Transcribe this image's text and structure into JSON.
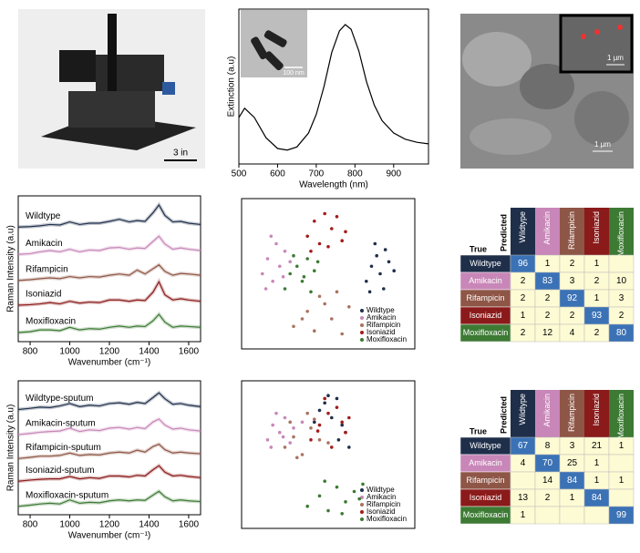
{
  "photo": {
    "scale_label": "3 in"
  },
  "tem_inset": {
    "scale_label": "100 nm"
  },
  "sem": {
    "inset_scale_label": "1 µm",
    "scale_label": "1 µm"
  },
  "chart_data": [
    {
      "type": "line",
      "x_label": "Wavelength (nm)",
      "y_label": "Extinction (a.u)",
      "x": [
        500,
        515,
        540,
        570,
        600,
        625,
        650,
        680,
        700,
        720,
        740,
        760,
        775,
        790,
        810,
        830,
        850,
        870,
        900,
        930,
        960,
        990
      ],
      "series": [
        {
          "color": "#000000",
          "values": [
            0.3,
            0.36,
            0.3,
            0.17,
            0.1,
            0.09,
            0.11,
            0.2,
            0.32,
            0.5,
            0.72,
            0.86,
            0.9,
            0.87,
            0.73,
            0.53,
            0.38,
            0.28,
            0.2,
            0.16,
            0.14,
            0.13
          ]
        }
      ],
      "xlim": [
        500,
        990
      ],
      "ylim": [
        0,
        1
      ],
      "xticks": [
        500,
        600,
        700,
        800,
        900
      ]
    },
    {
      "type": "line",
      "x_label": "Wavenumber (cm⁻¹)",
      "y_label": "Raman Intensity (a.u)",
      "x": [
        740,
        800,
        850,
        900,
        950,
        1000,
        1050,
        1100,
        1150,
        1200,
        1250,
        1300,
        1340,
        1380,
        1420,
        1450,
        1480,
        1520,
        1560,
        1600,
        1660
      ],
      "series": [
        {
          "name": "Wildtype",
          "color": "#1f2f4a",
          "values": [
            4.4,
            4.42,
            4.45,
            4.5,
            4.48,
            4.6,
            4.5,
            4.55,
            4.55,
            4.62,
            4.7,
            4.6,
            4.65,
            4.62,
            4.95,
            5.25,
            4.85,
            4.6,
            4.62,
            4.55,
            4.5
          ]
        },
        {
          "name": "Amikacin",
          "color": "#c887b8",
          "values": [
            3.35,
            3.38,
            3.45,
            3.5,
            3.45,
            3.55,
            3.45,
            3.52,
            3.5,
            3.6,
            3.62,
            3.55,
            3.6,
            3.58,
            3.85,
            4.05,
            3.75,
            3.55,
            3.6,
            3.55,
            3.5
          ]
        },
        {
          "name": "Rifampicin",
          "color": "#8e5646",
          "values": [
            2.35,
            2.38,
            2.42,
            2.45,
            2.42,
            2.5,
            2.45,
            2.5,
            2.48,
            2.55,
            2.6,
            2.55,
            2.75,
            2.6,
            2.8,
            2.95,
            2.7,
            2.55,
            2.62,
            2.6,
            2.55
          ]
        },
        {
          "name": "Isoniazid",
          "color": "#8b1a1a",
          "values": [
            1.4,
            1.42,
            1.45,
            1.5,
            1.45,
            1.55,
            1.48,
            1.52,
            1.5,
            1.6,
            1.6,
            1.55,
            1.6,
            1.58,
            1.9,
            2.3,
            1.8,
            1.6,
            1.65,
            1.6,
            1.55
          ]
        },
        {
          "name": "Moxifloxacin",
          "color": "#3d7a34",
          "values": [
            0.35,
            0.38,
            0.45,
            0.45,
            0.42,
            0.55,
            0.45,
            0.5,
            0.48,
            0.55,
            0.6,
            0.55,
            0.6,
            0.58,
            0.8,
            1.05,
            0.75,
            0.55,
            0.6,
            0.58,
            0.55
          ]
        }
      ],
      "xlim": [
        740,
        1660
      ],
      "ylim": [
        0,
        5.6
      ],
      "xticks": [
        800,
        1000,
        1200,
        1400,
        1600
      ]
    },
    {
      "type": "scatter",
      "xlim": [
        0,
        100
      ],
      "ylim": [
        0,
        100
      ],
      "series": [
        {
          "name": "Wildtype",
          "color": "#1f2f4a",
          "x": [
            72,
            75,
            78,
            80,
            82,
            85,
            77,
            88,
            74,
            83
          ],
          "y": [
            45,
            55,
            62,
            50,
            40,
            58,
            70,
            52,
            38,
            66
          ]
        },
        {
          "name": "Amikacin",
          "color": "#c887b8",
          "x": [
            12,
            15,
            18,
            20,
            22,
            25,
            14,
            28,
            17,
            24
          ],
          "y": [
            50,
            60,
            45,
            70,
            55,
            65,
            40,
            58,
            75,
            48
          ]
        },
        {
          "name": "Rifampicin",
          "color": "#a9735f",
          "x": [
            30,
            38,
            42,
            48,
            52,
            58,
            62,
            45,
            35,
            55
          ],
          "y": [
            15,
            25,
            12,
            30,
            20,
            10,
            28,
            35,
            20,
            38
          ]
        },
        {
          "name": "Isoniazid",
          "color": "#a31c1c",
          "x": [
            38,
            42,
            45,
            48,
            52,
            55,
            58,
            40,
            50,
            60
          ],
          "y": [
            75,
            85,
            70,
            90,
            80,
            88,
            72,
            65,
            68,
            78
          ]
        },
        {
          "name": "Moxifloxacin",
          "color": "#3d7a34",
          "x": [
            25,
            28,
            32,
            35,
            38,
            40,
            42,
            30,
            36,
            44
          ],
          "y": [
            40,
            50,
            55,
            45,
            60,
            38,
            52,
            62,
            48,
            58
          ]
        }
      ]
    },
    {
      "type": "heatmap",
      "x_label": "Predicted",
      "y_label": "True",
      "categories": [
        "Wildtype",
        "Amikacin",
        "Rifampicin",
        "Isoniazid",
        "Moxifloxacin"
      ],
      "category_colors": [
        "#1f2f4a",
        "#c887b8",
        "#8e5646",
        "#8b1a1a",
        "#3d7a34"
      ],
      "values": [
        [
          96,
          1,
          2,
          1,
          null
        ],
        [
          2,
          83,
          3,
          2,
          10
        ],
        [
          2,
          2,
          92,
          1,
          3
        ],
        [
          1,
          2,
          2,
          93,
          2
        ],
        [
          2,
          12,
          4,
          2,
          80
        ]
      ],
      "colors": {
        "high": "#3b72b6",
        "low": "#fdfbd3"
      }
    },
    {
      "type": "line",
      "x_label": "Wavenumber (cm⁻¹)",
      "y_label": "Raman Intensity (a.u)",
      "x": [
        740,
        800,
        850,
        900,
        950,
        1000,
        1050,
        1100,
        1150,
        1200,
        1250,
        1300,
        1340,
        1380,
        1420,
        1450,
        1480,
        1520,
        1560,
        1600,
        1660
      ],
      "series": [
        {
          "name": "Wildtype-sputum",
          "color": "#1f2f4a",
          "values": [
            4.4,
            4.45,
            4.5,
            4.48,
            4.55,
            4.65,
            4.52,
            4.58,
            4.55,
            4.65,
            4.68,
            4.62,
            4.7,
            4.65,
            4.9,
            5.1,
            4.85,
            4.62,
            4.65,
            4.58,
            4.52
          ]
        },
        {
          "name": "Amikacin-sputum",
          "color": "#c887b8",
          "values": [
            3.35,
            3.4,
            3.45,
            3.48,
            3.5,
            3.62,
            3.48,
            3.55,
            3.52,
            3.62,
            3.65,
            3.58,
            3.65,
            3.6,
            3.88,
            4.0,
            3.75,
            3.58,
            3.62,
            3.55,
            3.5
          ]
        },
        {
          "name": "Rifampicin-sputum",
          "color": "#8e5646",
          "values": [
            2.35,
            2.4,
            2.45,
            2.45,
            2.48,
            2.58,
            2.48,
            2.52,
            2.5,
            2.58,
            2.62,
            2.58,
            2.7,
            2.62,
            2.85,
            2.95,
            2.72,
            2.58,
            2.62,
            2.58,
            2.55
          ]
        },
        {
          "name": "Isoniazid-sputum",
          "color": "#8b1a1a",
          "values": [
            1.4,
            1.45,
            1.48,
            1.5,
            1.5,
            1.6,
            1.5,
            1.55,
            1.52,
            1.62,
            1.62,
            1.58,
            1.65,
            1.62,
            1.88,
            2.05,
            1.78,
            1.62,
            1.65,
            1.6,
            1.55
          ]
        },
        {
          "name": "Moxifloxacin-sputum",
          "color": "#3d7a34",
          "values": [
            0.35,
            0.4,
            0.45,
            0.48,
            0.45,
            0.62,
            0.48,
            0.52,
            0.5,
            0.58,
            0.62,
            0.58,
            0.62,
            0.6,
            0.82,
            0.98,
            0.75,
            0.58,
            0.62,
            0.58,
            0.55
          ]
        }
      ],
      "xlim": [
        740,
        1660
      ],
      "ylim": [
        0,
        5.6
      ],
      "xticks": [
        800,
        1000,
        1200,
        1400,
        1600
      ]
    },
    {
      "type": "scatter",
      "xlim": [
        0,
        100
      ],
      "ylim": [
        0,
        100
      ],
      "series": [
        {
          "name": "Wildtype",
          "color": "#1f2f4a",
          "x": [
            45,
            48,
            52,
            55,
            58,
            60,
            50,
            62,
            42,
            56
          ],
          "y": [
            80,
            85,
            75,
            88,
            70,
            65,
            90,
            55,
            72,
            60
          ]
        },
        {
          "name": "Amikacin",
          "color": "#c887b8",
          "x": [
            15,
            18,
            22,
            25,
            28,
            20,
            30,
            24,
            35,
            17
          ],
          "y": [
            60,
            70,
            65,
            75,
            58,
            78,
            68,
            62,
            72,
            55
          ]
        },
        {
          "name": "Rifampicin",
          "color": "#a9735f",
          "x": [
            25,
            30,
            35,
            40,
            45,
            28,
            38,
            50,
            32,
            42
          ],
          "y": [
            55,
            62,
            50,
            68,
            60,
            72,
            78,
            58,
            48,
            74
          ]
        },
        {
          "name": "Isoniazid",
          "color": "#a31c1c",
          "x": [
            40,
            45,
            50,
            55,
            60,
            48,
            52,
            58,
            62,
            44
          ],
          "y": [
            60,
            70,
            78,
            82,
            65,
            88,
            55,
            72,
            75,
            66
          ]
        },
        {
          "name": "Moxifloxacin",
          "color": "#3d7a34",
          "x": [
            38,
            45,
            50,
            55,
            60,
            65,
            70,
            48,
            58,
            68
          ],
          "y": [
            15,
            22,
            12,
            28,
            18,
            25,
            30,
            32,
            10,
            20
          ]
        }
      ]
    },
    {
      "type": "heatmap",
      "x_label": "Predicted",
      "y_label": "True",
      "categories": [
        "Wildtype",
        "Amikacin",
        "Rifampicin",
        "Isoniazid",
        "Moxifloxacin"
      ],
      "category_colors": [
        "#1f2f4a",
        "#c887b8",
        "#8e5646",
        "#8b1a1a",
        "#3d7a34"
      ],
      "values": [
        [
          67,
          8,
          3,
          21,
          1
        ],
        [
          4,
          70,
          25,
          1,
          null
        ],
        [
          null,
          14,
          84,
          1,
          1
        ],
        [
          13,
          2,
          1,
          84,
          null
        ],
        [
          1,
          null,
          null,
          null,
          99
        ]
      ],
      "colors": {
        "high": "#3b72b6",
        "low": "#fdfbd3"
      }
    }
  ]
}
